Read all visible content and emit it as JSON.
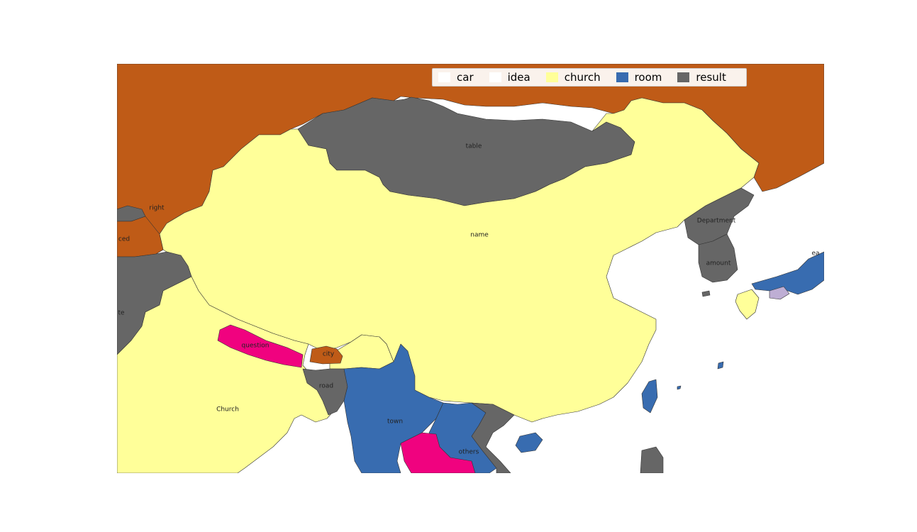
{
  "legend": {
    "items": [
      {
        "label": "car",
        "color": "#ffffff"
      },
      {
        "label": "idea",
        "color": "#ffffff"
      },
      {
        "label": "church",
        "color": "#ffff99"
      },
      {
        "label": "room",
        "color": "#386cb0"
      },
      {
        "label": "result",
        "color": "#666666"
      }
    ]
  },
  "colors": {
    "orange": "#bf5b17",
    "yellow": "#ffff99",
    "blue": "#386cb0",
    "gray": "#666666",
    "pink": "#f0027f",
    "lavender": "#beaed4",
    "ocean": "#ffffff"
  },
  "labels": {
    "table": "table",
    "name": "name",
    "right": "right",
    "ced": "ced",
    "te": "te",
    "question": "question",
    "city": "city",
    "road": "road",
    "church": "Church",
    "town": "town",
    "others": "others",
    "department": "Department",
    "amount": "amount",
    "ea": "ea"
  }
}
